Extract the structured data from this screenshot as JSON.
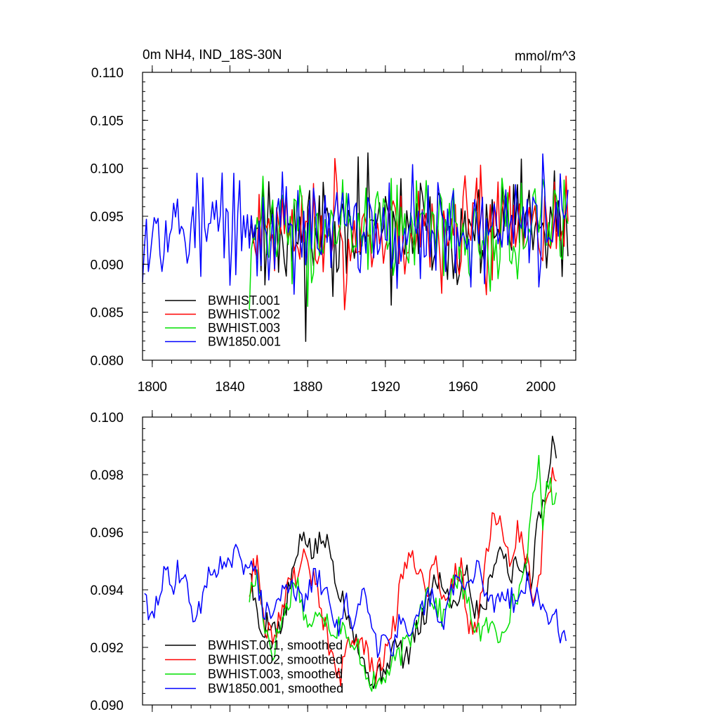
{
  "chart_data": [
    {
      "type": "line",
      "id": "top",
      "title_left": "0m NH4, IND_18S-30N",
      "title_right": "mmol/m^3",
      "xlim": [
        1795,
        2018
      ],
      "ylim": [
        0.08,
        0.11
      ],
      "xticks": [
        1800,
        1840,
        1880,
        1920,
        1960,
        2000
      ],
      "xtick_labels": [
        "1800",
        "1840",
        "1880",
        "1920",
        "1960",
        "2000"
      ],
      "yticks": [
        0.08,
        0.085,
        0.09,
        0.095,
        0.1,
        0.105,
        0.11
      ],
      "ytick_labels": [
        "0.080",
        "0.085",
        "0.090",
        "0.095",
        "0.100",
        "0.105",
        "0.110"
      ],
      "legend": [
        "BWHIST.001",
        "BWHIST.002",
        "BWHIST.003",
        "BW1850.001"
      ],
      "series": [
        {
          "name": "BWHIST.001",
          "color": "#000000",
          "start": 1850,
          "seed": 11,
          "mean": 0.0935,
          "amp": 0.0062,
          "trend": 0.0
        },
        {
          "name": "BWHIST.002",
          "color": "#ff0000",
          "start": 1850,
          "seed": 23,
          "mean": 0.0935,
          "amp": 0.006,
          "trend": 0.0
        },
        {
          "name": "BWHIST.003",
          "color": "#00e000",
          "start": 1850,
          "seed": 37,
          "mean": 0.0935,
          "amp": 0.0058,
          "trend": 0.0
        },
        {
          "name": "BW1850.001",
          "color": "#0000ff",
          "start": 1795,
          "seed": 53,
          "mean": 0.0938,
          "amp": 0.006,
          "trend": 0.0
        }
      ]
    },
    {
      "type": "line",
      "id": "bottom",
      "xlim": [
        1795,
        2018
      ],
      "ylim": [
        0.09,
        0.1
      ],
      "xticks": [
        1800,
        1840,
        1880,
        1920,
        1960,
        2000
      ],
      "yticks": [
        0.09,
        0.092,
        0.094,
        0.096,
        0.098,
        0.1
      ],
      "ytick_labels": [
        "0.090",
        "0.092",
        "0.094",
        "0.096",
        "0.098",
        "0.100"
      ],
      "legend": [
        "BWHIST.001, smoothed",
        "BWHIST.002, smoothed",
        "BWHIST.003, smoothed",
        "BW1850.001, smoothed"
      ],
      "series": [
        {
          "name": "BWHIST.001, smoothed",
          "color": "#000000",
          "anchors": [
            [
              1850,
              0.0948
            ],
            [
              1853,
              0.0934
            ],
            [
              1856,
              0.0925
            ],
            [
              1860,
              0.093
            ],
            [
              1866,
              0.0925
            ],
            [
              1872,
              0.0945
            ],
            [
              1878,
              0.096
            ],
            [
              1883,
              0.0952
            ],
            [
              1887,
              0.0958
            ],
            [
              1891,
              0.0955
            ],
            [
              1895,
              0.0943
            ],
            [
              1899,
              0.0935
            ],
            [
              1903,
              0.0928
            ],
            [
              1907,
              0.0918
            ],
            [
              1911,
              0.091
            ],
            [
              1916,
              0.0909
            ],
            [
              1921,
              0.0915
            ],
            [
              1926,
              0.0922
            ],
            [
              1930,
              0.0915
            ],
            [
              1936,
              0.0925
            ],
            [
              1941,
              0.0932
            ],
            [
              1946,
              0.0945
            ],
            [
              1951,
              0.094
            ],
            [
              1956,
              0.0935
            ],
            [
              1962,
              0.0948
            ],
            [
              1966,
              0.0932
            ],
            [
              1972,
              0.0936
            ],
            [
              1976,
              0.0952
            ],
            [
              1980,
              0.0954
            ],
            [
              1984,
              0.0946
            ],
            [
              1988,
              0.0948
            ],
            [
              1992,
              0.0947
            ],
            [
              1995,
              0.0944
            ],
            [
              1999,
              0.0965
            ],
            [
              2003,
              0.0978
            ],
            [
              2006,
              0.099
            ],
            [
              2008,
              0.099
            ]
          ],
          "seed": 5,
          "jitter": 0.00045
        },
        {
          "name": "BWHIST.002, smoothed",
          "color": "#ff0000",
          "anchors": [
            [
              1850,
              0.094
            ],
            [
              1854,
              0.0953
            ],
            [
              1857,
              0.093
            ],
            [
              1862,
              0.0922
            ],
            [
              1866,
              0.0933
            ],
            [
              1870,
              0.0942
            ],
            [
              1874,
              0.0945
            ],
            [
              1878,
              0.0952
            ],
            [
              1883,
              0.0944
            ],
            [
              1888,
              0.093
            ],
            [
              1893,
              0.0915
            ],
            [
              1897,
              0.091
            ],
            [
              1901,
              0.092
            ],
            [
              1905,
              0.0925
            ],
            [
              1910,
              0.0918
            ],
            [
              1915,
              0.091
            ],
            [
              1920,
              0.0918
            ],
            [
              1925,
              0.093
            ],
            [
              1929,
              0.0945
            ],
            [
              1933,
              0.0955
            ],
            [
              1937,
              0.0948
            ],
            [
              1941,
              0.094
            ],
            [
              1946,
              0.095
            ],
            [
              1950,
              0.0935
            ],
            [
              1955,
              0.0945
            ],
            [
              1959,
              0.0948
            ],
            [
              1963,
              0.0925
            ],
            [
              1968,
              0.093
            ],
            [
              1972,
              0.0955
            ],
            [
              1976,
              0.0965
            ],
            [
              1980,
              0.0962
            ],
            [
              1984,
              0.0948
            ],
            [
              1988,
              0.0962
            ],
            [
              1992,
              0.0953
            ],
            [
              1996,
              0.094
            ],
            [
              2000,
              0.0948
            ],
            [
              2003,
              0.0975
            ],
            [
              2006,
              0.0978
            ],
            [
              2008,
              0.0975
            ]
          ],
          "seed": 9,
          "jitter": 0.00045
        },
        {
          "name": "BWHIST.003, smoothed",
          "color": "#00e000",
          "anchors": [
            [
              1850,
              0.0938
            ],
            [
              1854,
              0.0945
            ],
            [
              1858,
              0.0928
            ],
            [
              1862,
              0.0918
            ],
            [
              1866,
              0.0928
            ],
            [
              1870,
              0.0935
            ],
            [
              1874,
              0.0945
            ],
            [
              1878,
              0.0932
            ],
            [
              1882,
              0.0925
            ],
            [
              1886,
              0.0935
            ],
            [
              1890,
              0.093
            ],
            [
              1894,
              0.0925
            ],
            [
              1898,
              0.093
            ],
            [
              1902,
              0.0918
            ],
            [
              1906,
              0.092
            ],
            [
              1910,
              0.0912
            ],
            [
              1915,
              0.0906
            ],
            [
              1920,
              0.091
            ],
            [
              1925,
              0.0915
            ],
            [
              1930,
              0.092
            ],
            [
              1934,
              0.0925
            ],
            [
              1938,
              0.0935
            ],
            [
              1942,
              0.094
            ],
            [
              1946,
              0.0935
            ],
            [
              1950,
              0.093
            ],
            [
              1954,
              0.094
            ],
            [
              1958,
              0.0945
            ],
            [
              1962,
              0.0935
            ],
            [
              1966,
              0.0928
            ],
            [
              1970,
              0.0925
            ],
            [
              1974,
              0.0928
            ],
            [
              1978,
              0.0923
            ],
            [
              1982,
              0.093
            ],
            [
              1986,
              0.0935
            ],
            [
              1990,
              0.0942
            ],
            [
              1994,
              0.0958
            ],
            [
              1997,
              0.0975
            ],
            [
              1999,
              0.0985
            ],
            [
              2001,
              0.0965
            ],
            [
              2004,
              0.0978
            ],
            [
              2006,
              0.0972
            ],
            [
              2008,
              0.0975
            ]
          ],
          "seed": 17,
          "jitter": 0.00045
        },
        {
          "name": "BW1850.001, smoothed",
          "color": "#0000ff",
          "anchors": [
            [
              1796,
              0.0941
            ],
            [
              1798,
              0.0928
            ],
            [
              1801,
              0.0932
            ],
            [
              1804,
              0.094
            ],
            [
              1807,
              0.0946
            ],
            [
              1810,
              0.094
            ],
            [
              1813,
              0.0948
            ],
            [
              1817,
              0.0942
            ],
            [
              1820,
              0.0935
            ],
            [
              1823,
              0.0928
            ],
            [
              1826,
              0.094
            ],
            [
              1830,
              0.0945
            ],
            [
              1834,
              0.095
            ],
            [
              1838,
              0.0945
            ],
            [
              1842,
              0.0953
            ],
            [
              1846,
              0.0948
            ],
            [
              1850,
              0.0952
            ],
            [
              1853,
              0.0945
            ],
            [
              1856,
              0.0936
            ],
            [
              1860,
              0.093
            ],
            [
              1864,
              0.0935
            ],
            [
              1868,
              0.094
            ],
            [
              1872,
              0.0944
            ],
            [
              1876,
              0.0935
            ],
            [
              1880,
              0.0938
            ],
            [
              1884,
              0.0945
            ],
            [
              1888,
              0.094
            ],
            [
              1892,
              0.0935
            ],
            [
              1896,
              0.0925
            ],
            [
              1900,
              0.0935
            ],
            [
              1904,
              0.0928
            ],
            [
              1908,
              0.094
            ],
            [
              1912,
              0.0935
            ],
            [
              1916,
              0.092
            ],
            [
              1920,
              0.0925
            ],
            [
              1924,
              0.092
            ],
            [
              1928,
              0.093
            ],
            [
              1932,
              0.092
            ],
            [
              1936,
              0.0928
            ],
            [
              1940,
              0.0935
            ],
            [
              1944,
              0.0938
            ],
            [
              1948,
              0.0925
            ],
            [
              1952,
              0.0935
            ],
            [
              1956,
              0.0945
            ],
            [
              1960,
              0.094
            ],
            [
              1964,
              0.0942
            ],
            [
              1968,
              0.0948
            ],
            [
              1972,
              0.0938
            ],
            [
              1976,
              0.0935
            ],
            [
              1980,
              0.094
            ],
            [
              1984,
              0.0938
            ],
            [
              1988,
              0.0935
            ],
            [
              1992,
              0.0943
            ],
            [
              1996,
              0.0938
            ],
            [
              2000,
              0.0935
            ],
            [
              2004,
              0.093
            ],
            [
              2008,
              0.0932
            ],
            [
              2011,
              0.0922
            ],
            [
              2013,
              0.0925
            ]
          ],
          "seed": 29,
          "jitter": 0.00045
        }
      ]
    }
  ]
}
